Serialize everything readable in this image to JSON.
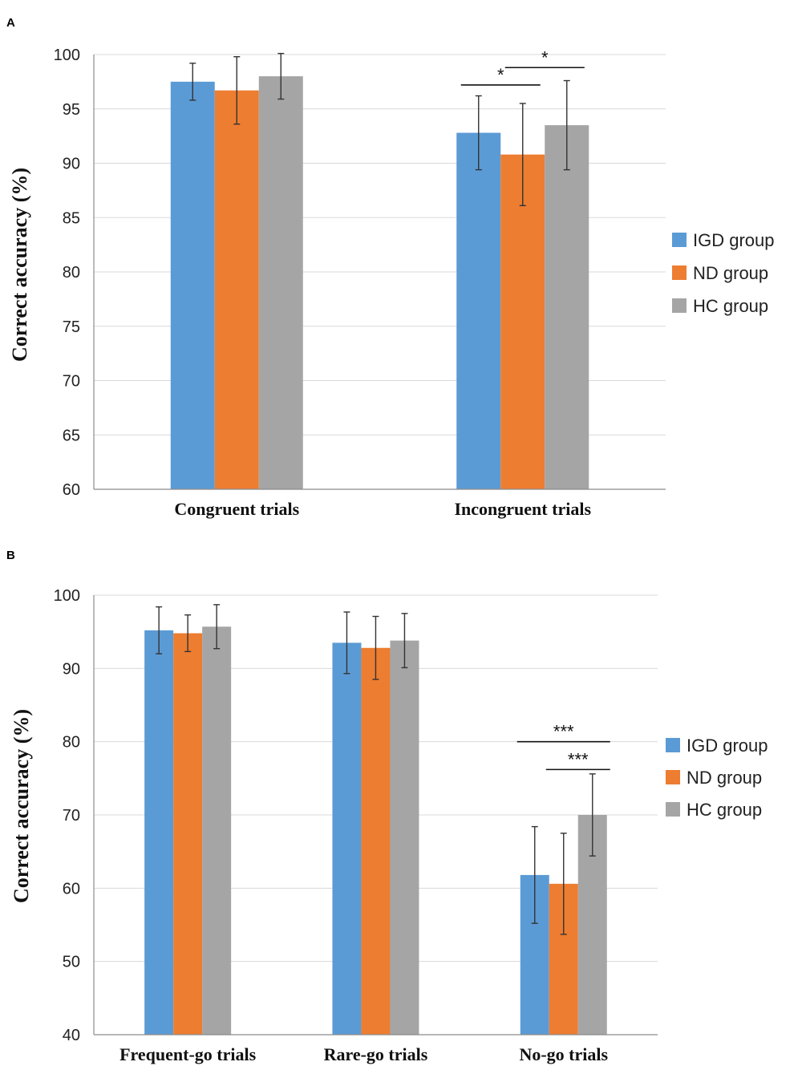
{
  "chart_data": [
    {
      "panel": "A",
      "type": "bar",
      "title": "",
      "xlabel": "",
      "ylabel": "Correct accuracy (%)",
      "ylim": [
        60,
        100
      ],
      "yticks": [
        60,
        65,
        70,
        75,
        80,
        85,
        90,
        95,
        100
      ],
      "grid": true,
      "legend_position": "right",
      "categories": [
        "Congruent trials",
        "Incongruent trials"
      ],
      "series": [
        {
          "name": "IGD group",
          "color": "#5b9bd5",
          "values": [
            97.5,
            92.8
          ],
          "errors": [
            1.7,
            3.4
          ]
        },
        {
          "name": "ND group",
          "color": "#ed7d31",
          "values": [
            96.7,
            90.8
          ],
          "errors": [
            3.1,
            4.7
          ]
        },
        {
          "name": "HC group",
          "color": "#a5a5a5",
          "values": [
            98.0,
            93.5
          ],
          "errors": [
            2.1,
            4.1
          ]
        }
      ],
      "significance": [
        {
          "label": "*",
          "category": 1,
          "from": 0,
          "to": 1,
          "y": 97.2
        },
        {
          "label": "*",
          "category": 1,
          "from": 1,
          "to": 2,
          "y": 98.8
        }
      ]
    },
    {
      "panel": "B",
      "type": "bar",
      "title": "",
      "xlabel": "",
      "ylabel": "Correct accuracy (%)",
      "ylim": [
        40,
        100
      ],
      "yticks": [
        40,
        50,
        60,
        70,
        80,
        90,
        100
      ],
      "grid": true,
      "legend_position": "right",
      "categories": [
        "Frequent-go trials",
        "Rare-go trials",
        "No-go trials"
      ],
      "series": [
        {
          "name": "IGD group",
          "color": "#5b9bd5",
          "values": [
            95.2,
            93.5,
            61.8
          ],
          "errors": [
            3.2,
            4.2,
            6.6
          ]
        },
        {
          "name": "ND group",
          "color": "#ed7d31",
          "values": [
            94.8,
            92.8,
            60.6
          ],
          "errors": [
            2.5,
            4.3,
            6.9
          ]
        },
        {
          "name": "HC group",
          "color": "#a5a5a5",
          "values": [
            95.7,
            93.8,
            70.0
          ],
          "errors": [
            3.0,
            3.7,
            5.6
          ]
        }
      ],
      "significance": [
        {
          "label": "***",
          "category": 2,
          "from": 0,
          "to": 2,
          "y": 80.0
        },
        {
          "label": "***",
          "category": 2,
          "from": 1,
          "to": 2,
          "y": 76.2
        }
      ]
    }
  ]
}
